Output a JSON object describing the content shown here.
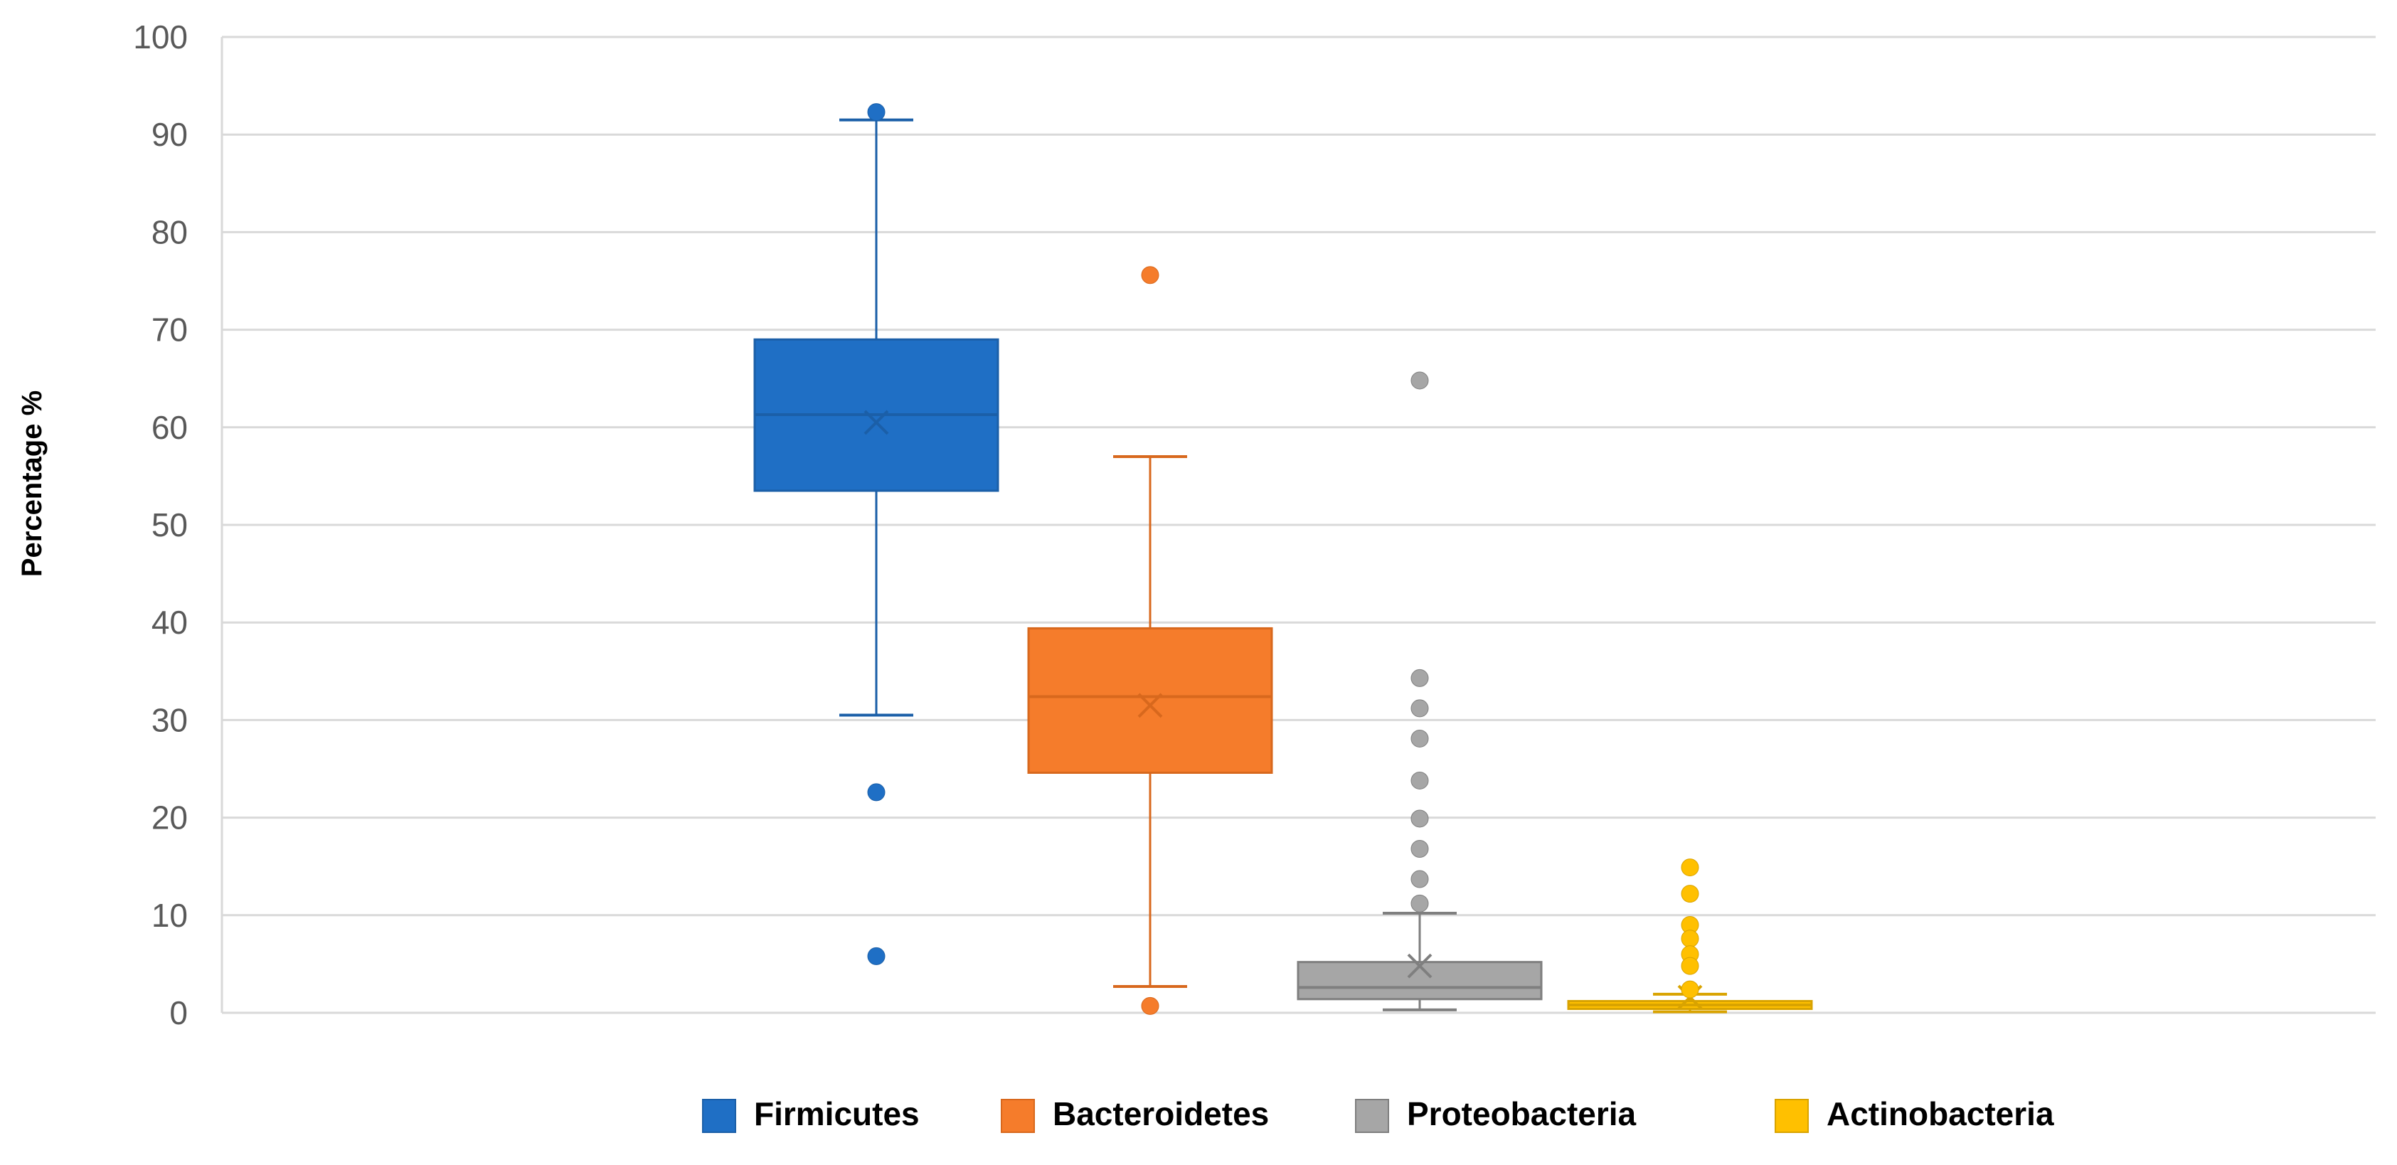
{
  "chart_data": {
    "type": "box",
    "title": "",
    "xlabel": "",
    "ylabel": "Percentage %",
    "ylim": [
      0,
      100
    ],
    "yticks": [
      "0",
      "10",
      "20",
      "30",
      "40",
      "50",
      "60",
      "70",
      "80",
      "90",
      "100"
    ],
    "grid": true,
    "legend_position": "bottom",
    "series": [
      {
        "name": "Firmicutes",
        "color": "#1f6fc5",
        "stroke": "#1b5fa8",
        "whisker_min": 30.5,
        "q1": 53.5,
        "median": 61.3,
        "q3": 69.0,
        "whisker_max": 91.5,
        "mean": 60.5,
        "outliers": [
          92.3,
          22.6,
          5.8
        ]
      },
      {
        "name": "Bacteroidetes",
        "color": "#f57c2b",
        "stroke": "#d8681d",
        "whisker_min": 2.7,
        "q1": 24.6,
        "median": 32.4,
        "q3": 39.4,
        "whisker_max": 57.0,
        "mean": 31.5,
        "outliers": [
          75.6,
          0.7
        ]
      },
      {
        "name": "Proteobacteria",
        "color": "#a6a6a6",
        "stroke": "#7f7f7f",
        "whisker_min": 0.3,
        "q1": 1.4,
        "median": 2.6,
        "q3": 5.2,
        "whisker_max": 10.2,
        "mean": 4.8,
        "outliers": [
          64.8,
          34.3,
          31.2,
          28.1,
          23.8,
          19.9,
          16.8,
          13.7,
          11.2
        ]
      },
      {
        "name": "Actinobacteria",
        "color": "#ffc000",
        "stroke": "#d9a300",
        "whisker_min": 0.1,
        "q1": 0.4,
        "median": 0.8,
        "q3": 1.2,
        "whisker_max": 1.9,
        "mean": 1.6,
        "outliers": [
          14.9,
          12.2,
          9.0,
          7.6,
          6.0,
          4.8,
          2.4
        ]
      }
    ]
  }
}
